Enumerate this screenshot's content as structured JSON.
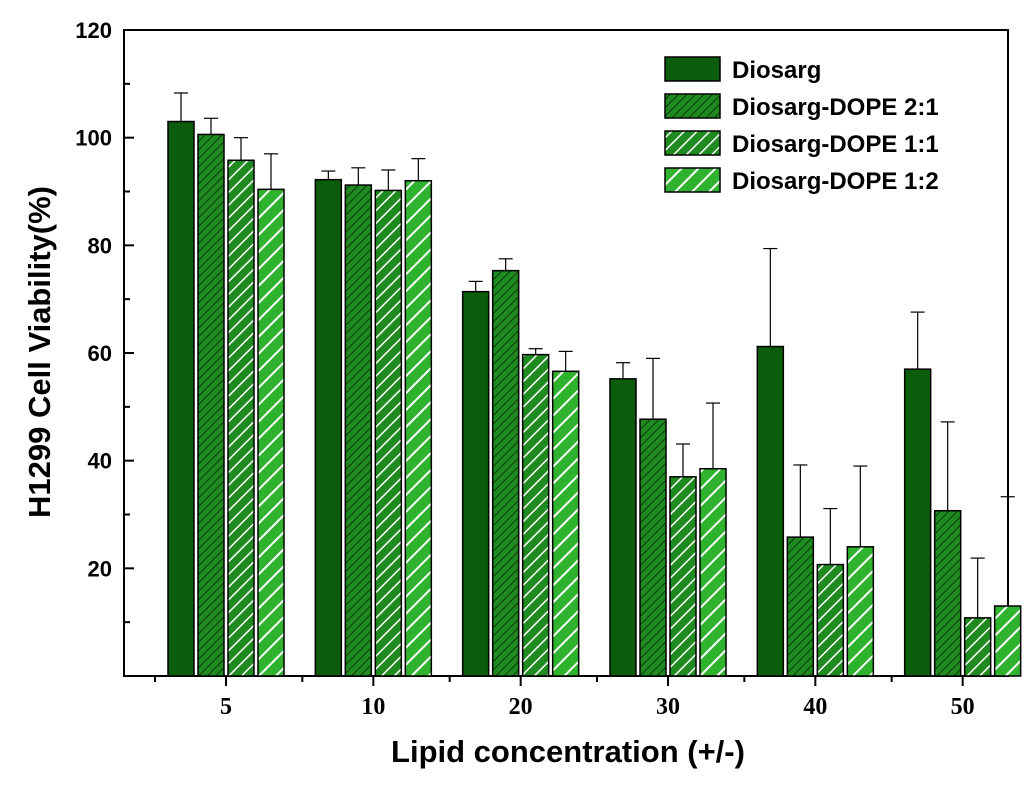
{
  "chart_data": {
    "type": "bar",
    "title": "",
    "xlabel": "Lipid concentration (+/-)",
    "ylabel": "H1299 Cell Viability(%)",
    "categories": [
      "5",
      "10",
      "20",
      "30",
      "40",
      "50"
    ],
    "ylim": [
      0,
      120
    ],
    "yticks": [
      "20",
      "40",
      "60",
      "80",
      "100",
      "120"
    ],
    "legend_position": "top-right",
    "series": [
      {
        "name": "Diosarg",
        "values": [
          103,
          92.2,
          71.4,
          55.2,
          61.2,
          57.0
        ],
        "errors": [
          5.3,
          1.6,
          1.9,
          3.0,
          18.2,
          10.6
        ],
        "color": "#0b5c0b",
        "pattern": "solid"
      },
      {
        "name": "Diosarg-DOPE 2:1",
        "values": [
          100.6,
          91.2,
          75.3,
          47.7,
          25.8,
          30.7
        ],
        "errors": [
          3.0,
          3.2,
          2.2,
          11.3,
          13.4,
          16.5
        ],
        "color": "#1f8a1f",
        "pattern": "dense-hatch"
      },
      {
        "name": "Diosarg-DOPE 1:1",
        "values": [
          95.8,
          90.2,
          59.7,
          37.0,
          20.7,
          10.8
        ],
        "errors": [
          4.2,
          3.8,
          1.1,
          6.1,
          10.4,
          11.1
        ],
        "color": "#1f8a1f",
        "pattern": "hatch"
      },
      {
        "name": "Diosarg-DOPE 1:2",
        "values": [
          90.4,
          92.0,
          56.6,
          38.5,
          24.0,
          13.0
        ],
        "errors": [
          6.6,
          4.1,
          3.7,
          12.2,
          15.0,
          20.3
        ],
        "color": "#2fb32f",
        "pattern": "wide-hatch"
      }
    ]
  }
}
